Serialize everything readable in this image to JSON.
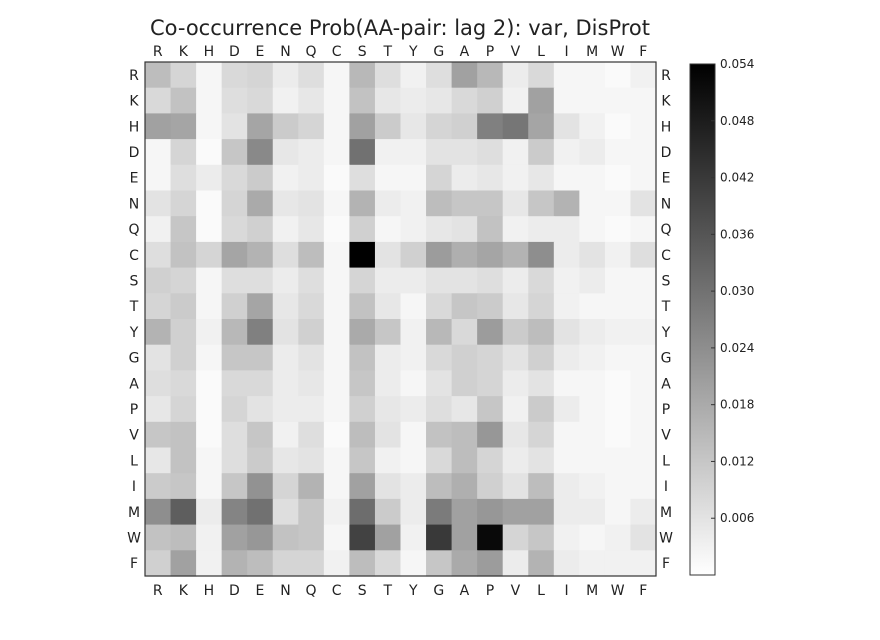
{
  "chart_data": {
    "type": "heatmap",
    "title": "Co-occurrence Prob(AA-pair: lag 2): var, DisProt",
    "row_labels": [
      "R",
      "K",
      "H",
      "D",
      "E",
      "N",
      "Q",
      "C",
      "S",
      "T",
      "Y",
      "G",
      "A",
      "P",
      "V",
      "L",
      "I",
      "M",
      "W",
      "F"
    ],
    "col_labels": [
      "R",
      "K",
      "H",
      "D",
      "E",
      "N",
      "Q",
      "C",
      "S",
      "T",
      "Y",
      "G",
      "A",
      "P",
      "V",
      "L",
      "I",
      "M",
      "W",
      "F"
    ],
    "colormap": {
      "low": "#ffffff",
      "high": "#000000"
    },
    "vmin": 0.0,
    "vmax": 0.054,
    "colorbar_ticks": [
      0.006,
      0.012,
      0.018,
      0.024,
      0.03,
      0.036,
      0.042,
      0.048,
      0.054
    ],
    "colorbar_tick_labels": [
      "0.006",
      "0.012",
      "0.018",
      "0.024",
      "0.030",
      "0.036",
      "0.042",
      "0.048",
      "0.054"
    ],
    "values": [
      [
        0.014,
        0.009,
        0.002,
        0.008,
        0.009,
        0.004,
        0.007,
        0.002,
        0.015,
        0.007,
        0.003,
        0.007,
        0.02,
        0.015,
        0.004,
        0.008,
        0.002,
        0.002,
        0.001,
        0.003
      ],
      [
        0.008,
        0.013,
        0.002,
        0.007,
        0.008,
        0.003,
        0.005,
        0.002,
        0.013,
        0.005,
        0.004,
        0.005,
        0.008,
        0.01,
        0.003,
        0.02,
        0.002,
        0.002,
        0.002,
        0.002
      ],
      [
        0.02,
        0.019,
        0.002,
        0.006,
        0.019,
        0.011,
        0.009,
        0.002,
        0.02,
        0.011,
        0.005,
        0.009,
        0.01,
        0.027,
        0.029,
        0.019,
        0.006,
        0.003,
        0.001,
        0.002
      ],
      [
        0.002,
        0.009,
        0.001,
        0.012,
        0.025,
        0.005,
        0.004,
        0.002,
        0.03,
        0.003,
        0.003,
        0.006,
        0.006,
        0.007,
        0.003,
        0.011,
        0.003,
        0.004,
        0.002,
        0.002
      ],
      [
        0.002,
        0.007,
        0.004,
        0.008,
        0.011,
        0.003,
        0.004,
        0.001,
        0.007,
        0.002,
        0.002,
        0.009,
        0.004,
        0.005,
        0.003,
        0.005,
        0.002,
        0.002,
        0.001,
        0.002
      ],
      [
        0.006,
        0.009,
        0.001,
        0.009,
        0.018,
        0.005,
        0.006,
        0.002,
        0.016,
        0.004,
        0.003,
        0.014,
        0.012,
        0.012,
        0.005,
        0.012,
        0.016,
        0.002,
        0.002,
        0.006
      ],
      [
        0.003,
        0.012,
        0.001,
        0.008,
        0.01,
        0.003,
        0.005,
        0.001,
        0.01,
        0.002,
        0.003,
        0.005,
        0.006,
        0.013,
        0.003,
        0.004,
        0.004,
        0.002,
        0.001,
        0.002
      ],
      [
        0.007,
        0.013,
        0.009,
        0.019,
        0.016,
        0.007,
        0.014,
        0.002,
        0.054,
        0.006,
        0.01,
        0.021,
        0.017,
        0.019,
        0.016,
        0.024,
        0.004,
        0.006,
        0.003,
        0.007
      ],
      [
        0.01,
        0.009,
        0.002,
        0.007,
        0.007,
        0.004,
        0.007,
        0.002,
        0.009,
        0.004,
        0.004,
        0.006,
        0.006,
        0.007,
        0.004,
        0.008,
        0.003,
        0.004,
        0.002,
        0.002
      ],
      [
        0.009,
        0.011,
        0.002,
        0.01,
        0.019,
        0.005,
        0.008,
        0.002,
        0.013,
        0.005,
        0.002,
        0.008,
        0.012,
        0.011,
        0.005,
        0.009,
        0.003,
        0.002,
        0.002,
        0.002
      ],
      [
        0.016,
        0.01,
        0.003,
        0.015,
        0.027,
        0.006,
        0.01,
        0.002,
        0.018,
        0.012,
        0.003,
        0.015,
        0.008,
        0.021,
        0.011,
        0.014,
        0.006,
        0.004,
        0.003,
        0.003
      ],
      [
        0.006,
        0.01,
        0.002,
        0.012,
        0.012,
        0.004,
        0.006,
        0.002,
        0.013,
        0.004,
        0.003,
        0.008,
        0.01,
        0.009,
        0.006,
        0.01,
        0.004,
        0.003,
        0.002,
        0.002
      ],
      [
        0.007,
        0.008,
        0.001,
        0.008,
        0.008,
        0.004,
        0.005,
        0.002,
        0.012,
        0.004,
        0.002,
        0.006,
        0.01,
        0.009,
        0.004,
        0.006,
        0.002,
        0.002,
        0.001,
        0.002
      ],
      [
        0.005,
        0.009,
        0.001,
        0.009,
        0.006,
        0.004,
        0.004,
        0.002,
        0.01,
        0.005,
        0.004,
        0.007,
        0.005,
        0.012,
        0.003,
        0.011,
        0.004,
        0.002,
        0.001,
        0.002
      ],
      [
        0.012,
        0.013,
        0.001,
        0.007,
        0.012,
        0.003,
        0.007,
        0.001,
        0.014,
        0.006,
        0.002,
        0.013,
        0.014,
        0.022,
        0.005,
        0.009,
        0.002,
        0.002,
        0.001,
        0.002
      ],
      [
        0.005,
        0.013,
        0.002,
        0.007,
        0.011,
        0.005,
        0.006,
        0.002,
        0.012,
        0.003,
        0.002,
        0.008,
        0.014,
        0.009,
        0.004,
        0.006,
        0.002,
        0.002,
        0.002,
        0.002
      ],
      [
        0.011,
        0.012,
        0.002,
        0.012,
        0.023,
        0.009,
        0.016,
        0.002,
        0.02,
        0.006,
        0.004,
        0.014,
        0.017,
        0.01,
        0.006,
        0.014,
        0.004,
        0.003,
        0.002,
        0.002
      ],
      [
        0.024,
        0.034,
        0.004,
        0.026,
        0.03,
        0.007,
        0.012,
        0.003,
        0.031,
        0.011,
        0.004,
        0.028,
        0.02,
        0.022,
        0.02,
        0.02,
        0.004,
        0.004,
        0.002,
        0.004
      ],
      [
        0.013,
        0.014,
        0.003,
        0.02,
        0.022,
        0.013,
        0.012,
        0.002,
        0.04,
        0.02,
        0.003,
        0.042,
        0.02,
        0.052,
        0.009,
        0.012,
        0.003,
        0.002,
        0.003,
        0.006
      ],
      [
        0.01,
        0.02,
        0.003,
        0.016,
        0.014,
        0.009,
        0.009,
        0.003,
        0.014,
        0.008,
        0.002,
        0.012,
        0.018,
        0.021,
        0.004,
        0.016,
        0.004,
        0.003,
        0.003,
        0.003
      ]
    ]
  }
}
